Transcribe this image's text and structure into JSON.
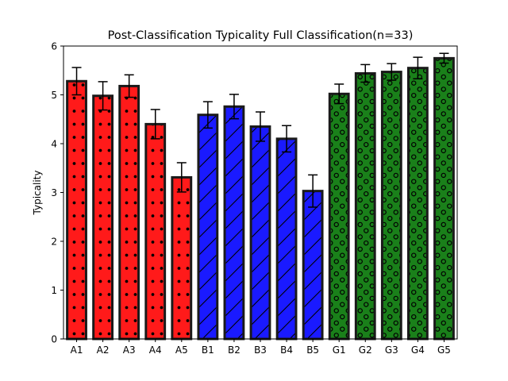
{
  "chart_data": {
    "type": "bar",
    "title": "Post-Classification Typicality Full Classification(n=33)",
    "xlabel": "",
    "ylabel": "Typicality",
    "ylim": [
      0,
      6
    ],
    "yticks": [
      0,
      1,
      2,
      3,
      4,
      5,
      6
    ],
    "grid": false,
    "legend": "none",
    "categories": [
      "A1",
      "A2",
      "A3",
      "A4",
      "A5",
      "B1",
      "B2",
      "B3",
      "B4",
      "B5",
      "G1",
      "G2",
      "G3",
      "G4",
      "G5"
    ],
    "values": [
      5.28,
      4.98,
      5.18,
      4.4,
      3.31,
      4.59,
      4.76,
      4.35,
      4.1,
      3.03,
      5.02,
      5.44,
      5.47,
      5.55,
      5.75
    ],
    "errors": [
      0.28,
      0.29,
      0.23,
      0.3,
      0.3,
      0.27,
      0.25,
      0.3,
      0.27,
      0.33,
      0.2,
      0.18,
      0.17,
      0.22,
      0.1
    ],
    "groups": [
      {
        "categories": [
          "A1",
          "A2",
          "A3",
          "A4",
          "A5"
        ],
        "color": "#ff1a1a",
        "hatch": "dots"
      },
      {
        "categories": [
          "B1",
          "B2",
          "B3",
          "B4",
          "B5"
        ],
        "color": "#1a1aff",
        "hatch": "diagonal"
      },
      {
        "categories": [
          "G1",
          "G2",
          "G3",
          "G4",
          "G5"
        ],
        "color": "#1a801a",
        "hatch": "circles"
      }
    ],
    "edge_color": "#1a1a1a"
  }
}
